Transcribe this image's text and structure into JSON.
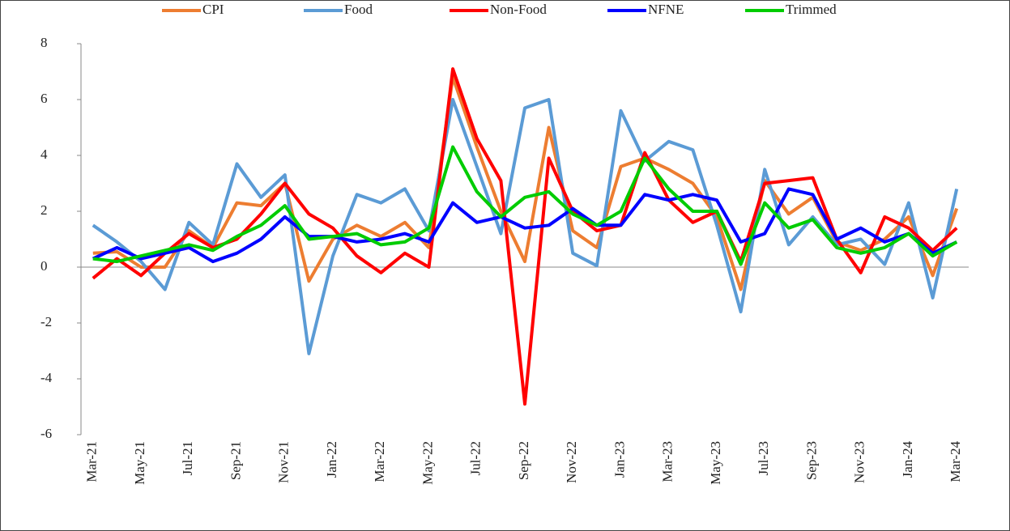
{
  "chart_data": {
    "type": "line",
    "categories": [
      "Mar-21",
      null,
      "May-21",
      null,
      "Jul-21",
      null,
      "Sep-21",
      null,
      "Nov-21",
      null,
      "Jan-22",
      null,
      "Mar-22",
      null,
      "May-22",
      null,
      "Jul-22",
      null,
      "Sep-22",
      null,
      "Nov-22",
      null,
      "Jan-23",
      null,
      "Mar-23",
      null,
      "May-23",
      null,
      "Jul-23",
      null,
      "Sep-23",
      null,
      "Nov-23",
      null,
      "Jan-24",
      null,
      "Mar-24"
    ],
    "series": [
      {
        "name": "CPI",
        "color": "#ed7d31",
        "values": [
          0.5,
          0.55,
          0,
          0,
          1.3,
          0.7,
          2.3,
          2.2,
          3.0,
          -0.5,
          1.0,
          1.5,
          1.1,
          1.6,
          0.7,
          6.8,
          4.3,
          2.0,
          0.2,
          5.0,
          1.3,
          0.7,
          3.6,
          3.9,
          3.5,
          3.0,
          1.8,
          -0.8,
          3.1,
          1.9,
          2.5,
          0.9,
          0.6,
          1.0,
          1.8,
          -0.3,
          2.1
        ]
      },
      {
        "name": "Food",
        "color": "#5b9bd5",
        "values": [
          1.5,
          0.9,
          0.2,
          -0.8,
          1.6,
          0.8,
          3.7,
          2.5,
          3.3,
          -3.1,
          0.4,
          2.6,
          2.3,
          2.8,
          1.3,
          6.0,
          3.6,
          1.2,
          5.7,
          6.0,
          0.5,
          0.05,
          5.6,
          3.8,
          4.5,
          4.2,
          1.5,
          -1.6,
          3.5,
          0.8,
          1.8,
          0.8,
          1.0,
          0.1,
          2.3,
          -1.1,
          2.8
        ]
      },
      {
        "name": "Non-Food",
        "color": "#ff0000",
        "values": [
          -0.4,
          0.3,
          -0.3,
          0.5,
          1.2,
          0.7,
          1.0,
          1.9,
          3.0,
          1.9,
          1.4,
          0.4,
          -0.2,
          0.5,
          0.0,
          7.1,
          4.6,
          3.1,
          -4.9,
          3.9,
          2.0,
          1.3,
          1.5,
          4.1,
          2.4,
          1.6,
          2.0,
          0.2,
          3.0,
          3.1,
          3.2,
          1.0,
          -0.2,
          1.8,
          1.4,
          0.6,
          1.4
        ]
      },
      {
        "name": "NFNE",
        "color": "#0000ff",
        "values": [
          0.3,
          0.7,
          0.3,
          0.5,
          0.7,
          0.2,
          0.5,
          1.0,
          1.8,
          1.1,
          1.1,
          0.9,
          1.0,
          1.2,
          0.9,
          2.3,
          1.6,
          1.8,
          1.4,
          1.5,
          2.1,
          1.5,
          1.5,
          2.6,
          2.4,
          2.6,
          2.4,
          0.9,
          1.2,
          2.8,
          2.6,
          1.0,
          1.4,
          0.9,
          1.2,
          0.5,
          0.9
        ]
      },
      {
        "name": "Trimmed",
        "color": "#00cc00",
        "values": [
          0.3,
          0.2,
          0.4,
          0.6,
          0.8,
          0.6,
          1.1,
          1.5,
          2.2,
          1.0,
          1.1,
          1.2,
          0.8,
          0.9,
          1.4,
          4.3,
          2.7,
          1.8,
          2.5,
          2.7,
          1.9,
          1.5,
          2.0,
          3.9,
          2.8,
          2.0,
          2.0,
          0.1,
          2.3,
          1.4,
          1.7,
          0.7,
          0.5,
          0.7,
          1.2,
          0.4,
          0.9
        ]
      }
    ],
    "ylim": [
      -6,
      8
    ],
    "yticks": [
      -6,
      -4,
      -2,
      0,
      2,
      4,
      6,
      8
    ],
    "legend": "top"
  }
}
